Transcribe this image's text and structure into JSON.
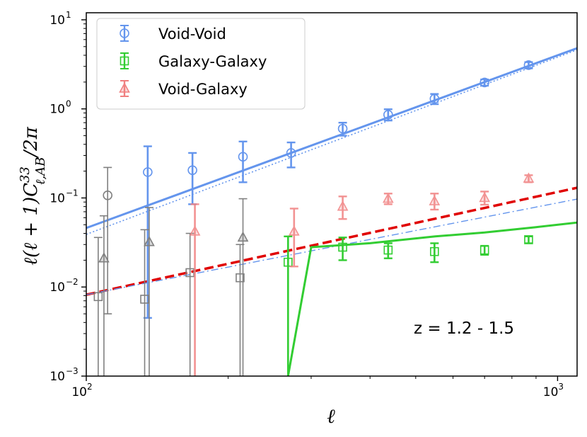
{
  "chart_data": {
    "type": "scatter",
    "title": "",
    "xlabel": "ℓ",
    "ylabel": "ℓ(ℓ + 1)C³³ℓ,AB/2π",
    "xscale": "log",
    "yscale": "log",
    "xlim": [
      100,
      1100
    ],
    "ylim": [
      0.001,
      12
    ],
    "x_ticks": [
      {
        "value": 100,
        "base": "10",
        "exp": "2"
      },
      {
        "value": 1000,
        "base": "10",
        "exp": "3"
      }
    ],
    "y_ticks": [
      {
        "value": 0.001,
        "base": "10",
        "exp": "−3"
      },
      {
        "value": 0.01,
        "base": "10",
        "exp": "−2"
      },
      {
        "value": 0.1,
        "base": "10",
        "exp": "−1"
      },
      {
        "value": 1,
        "base": "10",
        "exp": "0"
      },
      {
        "value": 10,
        "base": "10",
        "exp": "1"
      }
    ],
    "ylabel_parts": {
      "main": "ℓ(ℓ + 1)C",
      "sup": "33",
      "sub": "ℓ,AB",
      "tail": "/2π"
    },
    "legend_position": "top-left",
    "annotation": "z = 1.2 - 1.5",
    "series": [
      {
        "name": "Void-Void",
        "color": "#6495ED",
        "marker": "circle",
        "points": [
          {
            "x": 111,
            "y": 0.107,
            "lo": 0.005,
            "hi": 0.22,
            "faded": true
          },
          {
            "x": 135,
            "y": 0.195,
            "lo": 0.0045,
            "hi": 0.38,
            "faded": false
          },
          {
            "x": 168,
            "y": 0.205,
            "lo": 0.085,
            "hi": 0.32,
            "faded": false
          },
          {
            "x": 215,
            "y": 0.29,
            "lo": 0.15,
            "hi": 0.43,
            "faded": false
          },
          {
            "x": 272,
            "y": 0.32,
            "lo": 0.22,
            "hi": 0.42,
            "faded": false
          },
          {
            "x": 350,
            "y": 0.6,
            "lo": 0.5,
            "hi": 0.7,
            "faded": false
          },
          {
            "x": 437,
            "y": 0.86,
            "lo": 0.74,
            "hi": 0.99,
            "faded": false
          },
          {
            "x": 548,
            "y": 1.3,
            "lo": 1.13,
            "hi": 1.47,
            "faded": false
          },
          {
            "x": 700,
            "y": 1.98,
            "lo": 1.82,
            "hi": 2.14,
            "faded": false
          },
          {
            "x": 868,
            "y": 3.1,
            "lo": 2.85,
            "hi": 3.35,
            "faded": false
          }
        ]
      },
      {
        "name": "Galaxy-Galaxy",
        "color": "#32CD32",
        "marker": "square",
        "points": [
          {
            "x": 106,
            "y": 0.0078,
            "lo": 0.001,
            "hi": 0.036,
            "faded": true
          },
          {
            "x": 133,
            "y": 0.0073,
            "lo": 0.001,
            "hi": 0.044,
            "faded": true
          },
          {
            "x": 166,
            "y": 0.0145,
            "lo": 0.001,
            "hi": 0.04,
            "faded": true
          },
          {
            "x": 212,
            "y": 0.0127,
            "lo": 0.001,
            "hi": 0.03,
            "faded": true
          },
          {
            "x": 268,
            "y": 0.019,
            "lo": 0.001,
            "hi": 0.037,
            "faded": false
          },
          {
            "x": 350,
            "y": 0.028,
            "lo": 0.02,
            "hi": 0.036,
            "faded": false
          },
          {
            "x": 437,
            "y": 0.026,
            "lo": 0.021,
            "hi": 0.031,
            "faded": false
          },
          {
            "x": 548,
            "y": 0.025,
            "lo": 0.019,
            "hi": 0.031,
            "faded": false
          },
          {
            "x": 700,
            "y": 0.026,
            "lo": 0.023,
            "hi": 0.029,
            "faded": false
          },
          {
            "x": 868,
            "y": 0.034,
            "lo": 0.031,
            "hi": 0.037,
            "faded": false
          }
        ]
      },
      {
        "name": "Void-Galaxy",
        "color": "#F08080",
        "marker": "triangle",
        "points": [
          {
            "x": 109,
            "y": 0.021,
            "lo": 0.001,
            "hi": 0.063,
            "faded": true
          },
          {
            "x": 136,
            "y": 0.032,
            "lo": 0.001,
            "hi": 0.078,
            "faded": true
          },
          {
            "x": 170,
            "y": 0.042,
            "lo": 0.001,
            "hi": 0.085,
            "faded": false
          },
          {
            "x": 215,
            "y": 0.036,
            "lo": 0.001,
            "hi": 0.098,
            "faded": true
          },
          {
            "x": 276,
            "y": 0.042,
            "lo": 0.017,
            "hi": 0.076,
            "faded": false
          },
          {
            "x": 350,
            "y": 0.08,
            "lo": 0.058,
            "hi": 0.104,
            "faded": false
          },
          {
            "x": 437,
            "y": 0.098,
            "lo": 0.085,
            "hi": 0.112,
            "faded": false
          },
          {
            "x": 548,
            "y": 0.092,
            "lo": 0.074,
            "hi": 0.112,
            "faded": false
          },
          {
            "x": 700,
            "y": 0.1,
            "lo": 0.084,
            "hi": 0.118,
            "faded": false
          },
          {
            "x": 868,
            "y": 0.165,
            "lo": 0.15,
            "hi": 0.18,
            "faded": false
          }
        ]
      }
    ],
    "model_lines": [
      {
        "name": "void-void-model",
        "color": "#6495ED",
        "style": "solid",
        "x": [
          100,
          1100
        ],
        "y": [
          0.046,
          4.8
        ]
      },
      {
        "name": "void-void-linear",
        "color": "#6495ED",
        "style": "dotted",
        "x": [
          100,
          1100
        ],
        "y": [
          0.039,
          4.6
        ]
      },
      {
        "name": "void-galaxy-model",
        "color": "#E00000",
        "style": "dashed",
        "x": [
          100,
          1100
        ],
        "y": [
          0.0082,
          0.13
        ]
      },
      {
        "name": "void-galaxy-linear",
        "color": "#6495ED",
        "style": "dashdot",
        "x": [
          100,
          1100
        ],
        "y": [
          0.0082,
          0.097
        ]
      },
      {
        "name": "galaxy-galaxy-model",
        "color": "#32CD32",
        "style": "solid",
        "x": [
          268,
          300,
          400,
          550,
          700,
          900,
          1100
        ],
        "y": [
          0.001,
          0.028,
          0.031,
          0.037,
          0.041,
          0.047,
          0.053
        ]
      }
    ]
  }
}
